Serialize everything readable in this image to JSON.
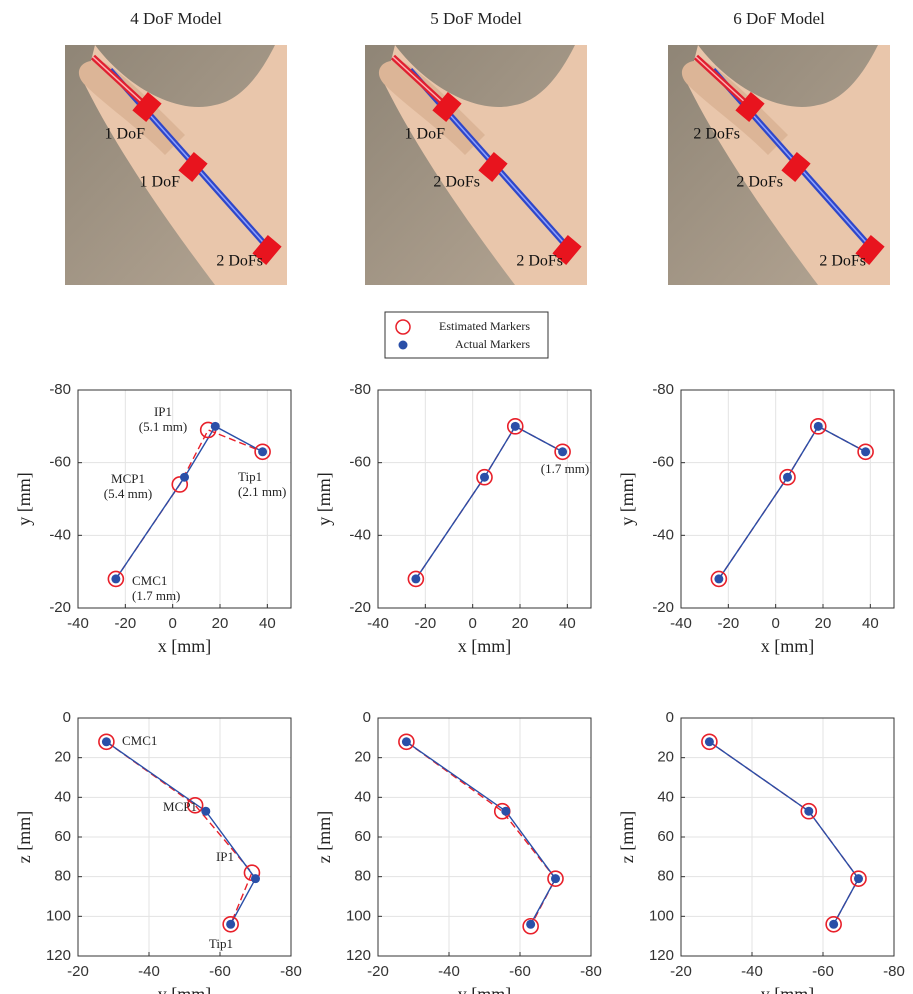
{
  "photos": [
    {
      "title": "4 DoF Model",
      "labels": [
        "1 DoF",
        "1 DoF",
        "2 DoFs"
      ]
    },
    {
      "title": "5 DoF Model",
      "labels": [
        "1 DoF",
        "2 DoFs",
        "2 DoFs"
      ]
    },
    {
      "title": "6 DoF Model",
      "labels": [
        "2 DoFs",
        "2 DoFs",
        "2 DoFs"
      ]
    }
  ],
  "legend": [
    {
      "name": "Estimated Markers",
      "color": "#e8202a",
      "marker": "open-circle"
    },
    {
      "name": "Actual Markers",
      "color": "#2a4fa8",
      "marker": "dot"
    }
  ],
  "chart_data": [
    {
      "type": "line",
      "xlabel": "x [mm]",
      "ylabel": "y [mm]",
      "xlim": [
        -40,
        50
      ],
      "xticks": [
        -40,
        -20,
        0,
        20,
        40
      ],
      "ylim": [
        -20,
        -80
      ],
      "yticks": [
        -80,
        -60,
        -40,
        -20
      ],
      "grid": true,
      "series": [
        {
          "color": "#e8202a",
          "marker": "open-circle",
          "dashed": true,
          "x": [
            -24,
            3,
            15,
            38
          ],
          "values": [
            -28,
            -54,
            -69,
            -63
          ]
        },
        {
          "color": "#2a4fa8",
          "marker": "dot",
          "dashed": false,
          "x": [
            -24,
            5,
            18,
            38
          ],
          "values": [
            -28,
            -56,
            -70,
            -63
          ]
        }
      ],
      "annotations": [
        [
          "IP1",
          "(5.1 mm)"
        ],
        [
          "MCP1",
          "(5.4 mm)"
        ],
        [
          "Tip1",
          "(2.1 mm)"
        ],
        [
          "CMC1",
          "(1.7 mm)"
        ]
      ]
    },
    {
      "type": "line",
      "xlabel": "x [mm]",
      "ylabel": "y [mm]",
      "xlim": [
        -40,
        50
      ],
      "xticks": [
        -40,
        -20,
        0,
        20,
        40
      ],
      "ylim": [
        -20,
        -80
      ],
      "yticks": [
        -80,
        -60,
        -40,
        -20
      ],
      "grid": true,
      "series": [
        {
          "color": "#e8202a",
          "marker": "open-circle",
          "dashed": true,
          "x": [
            -24,
            5,
            18,
            38
          ],
          "values": [
            -28,
            -56,
            -70,
            -63
          ]
        },
        {
          "color": "#2a4fa8",
          "marker": "dot",
          "dashed": false,
          "x": [
            -24,
            5,
            18,
            38
          ],
          "values": [
            -28,
            -56,
            -70,
            -63
          ]
        }
      ],
      "annotations": [
        [
          "(1.7 mm)"
        ]
      ]
    },
    {
      "type": "line",
      "xlabel": "x [mm]",
      "ylabel": "y [mm]",
      "xlim": [
        -40,
        50
      ],
      "xticks": [
        -40,
        -20,
        0,
        20,
        40
      ],
      "ylim": [
        -20,
        -80
      ],
      "yticks": [
        -80,
        -60,
        -40,
        -20
      ],
      "grid": true,
      "series": [
        {
          "color": "#e8202a",
          "marker": "open-circle",
          "dashed": true,
          "x": [
            -24,
            5,
            18,
            38
          ],
          "values": [
            -28,
            -56,
            -70,
            -63
          ]
        },
        {
          "color": "#2a4fa8",
          "marker": "dot",
          "dashed": false,
          "x": [
            -24,
            5,
            18,
            38
          ],
          "values": [
            -28,
            -56,
            -70,
            -63
          ]
        }
      ]
    },
    {
      "type": "line",
      "xlabel": "y [mm]",
      "ylabel": "z [mm]",
      "xlim": [
        -20,
        -80
      ],
      "xticks": [
        -20,
        -40,
        -60,
        -80
      ],
      "ylim": [
        120,
        0
      ],
      "yticks": [
        0,
        20,
        40,
        60,
        80,
        100,
        120
      ],
      "grid": true,
      "series": [
        {
          "color": "#e8202a",
          "marker": "open-circle",
          "dashed": true,
          "x": [
            -28,
            -53,
            -69,
            -63
          ],
          "values": [
            12,
            44,
            78,
            104
          ]
        },
        {
          "color": "#2a4fa8",
          "marker": "dot",
          "dashed": false,
          "x": [
            -28,
            -56,
            -70,
            -63
          ],
          "values": [
            12,
            47,
            81,
            104
          ]
        }
      ],
      "annotations": [
        [
          "CMC1"
        ],
        [
          "MCP1"
        ],
        [
          "IP1"
        ],
        [
          "Tip1"
        ]
      ]
    },
    {
      "type": "line",
      "xlabel": "y [mm]",
      "ylabel": "z [mm]",
      "xlim": [
        -20,
        -80
      ],
      "xticks": [
        -20,
        -40,
        -60,
        -80
      ],
      "ylim": [
        120,
        0
      ],
      "yticks": [
        0,
        20,
        40,
        60,
        80,
        100,
        120
      ],
      "grid": true,
      "series": [
        {
          "color": "#e8202a",
          "marker": "open-circle",
          "dashed": true,
          "x": [
            -28,
            -55,
            -70,
            -63
          ],
          "values": [
            12,
            47,
            81,
            105
          ]
        },
        {
          "color": "#2a4fa8",
          "marker": "dot",
          "dashed": false,
          "x": [
            -28,
            -56,
            -70,
            -63
          ],
          "values": [
            12,
            47,
            81,
            104
          ]
        }
      ]
    },
    {
      "type": "line",
      "xlabel": "y [mm]",
      "ylabel": "z [mm]",
      "xlim": [
        -20,
        -80
      ],
      "xticks": [
        -20,
        -40,
        -60,
        -80
      ],
      "ylim": [
        120,
        0
      ],
      "yticks": [
        0,
        20,
        40,
        60,
        80,
        100,
        120
      ],
      "grid": true,
      "series": [
        {
          "color": "#e8202a",
          "marker": "open-circle",
          "dashed": true,
          "x": [
            -28,
            -56,
            -70,
            -63
          ],
          "values": [
            12,
            47,
            81,
            104
          ]
        },
        {
          "color": "#2a4fa8",
          "marker": "dot",
          "dashed": false,
          "x": [
            -28,
            -56,
            -70,
            -63
          ],
          "values": [
            12,
            47,
            81,
            104
          ]
        }
      ]
    }
  ]
}
